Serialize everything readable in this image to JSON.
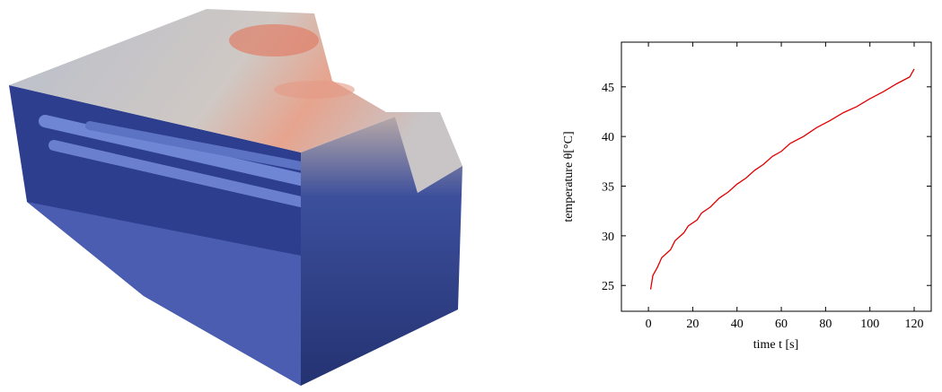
{
  "chart_data": {
    "type": "line",
    "x_label": "time t [s]",
    "y_label": "temperature θ[°C]",
    "series": [
      {
        "color": "#e00000",
        "x": [
          1,
          2,
          4,
          6,
          10,
          12,
          16,
          18,
          22,
          24,
          28,
          32,
          36,
          40,
          44,
          48,
          52,
          56,
          60,
          64,
          70,
          76,
          82,
          88,
          94,
          100,
          106,
          112,
          118,
          120
        ],
        "values": [
          24.6,
          26,
          26.8,
          27.8,
          28.6,
          29.5,
          30.3,
          31,
          31.6,
          32.3,
          32.9,
          33.8,
          34.4,
          35.2,
          35.8,
          36.6,
          37.2,
          38,
          38.5,
          39.3,
          40,
          40.9,
          41.6,
          42.4,
          43,
          43.8,
          44.5,
          45.3,
          46,
          46.8
        ]
      }
    ],
    "xlim": [
      -12.2,
      127.7
    ],
    "xticks": [
      0,
      20,
      40,
      60,
      80,
      100,
      120
    ],
    "ylim": [
      22.4,
      49.5
    ],
    "yticks": [
      25,
      30,
      35,
      40,
      45
    ]
  }
}
